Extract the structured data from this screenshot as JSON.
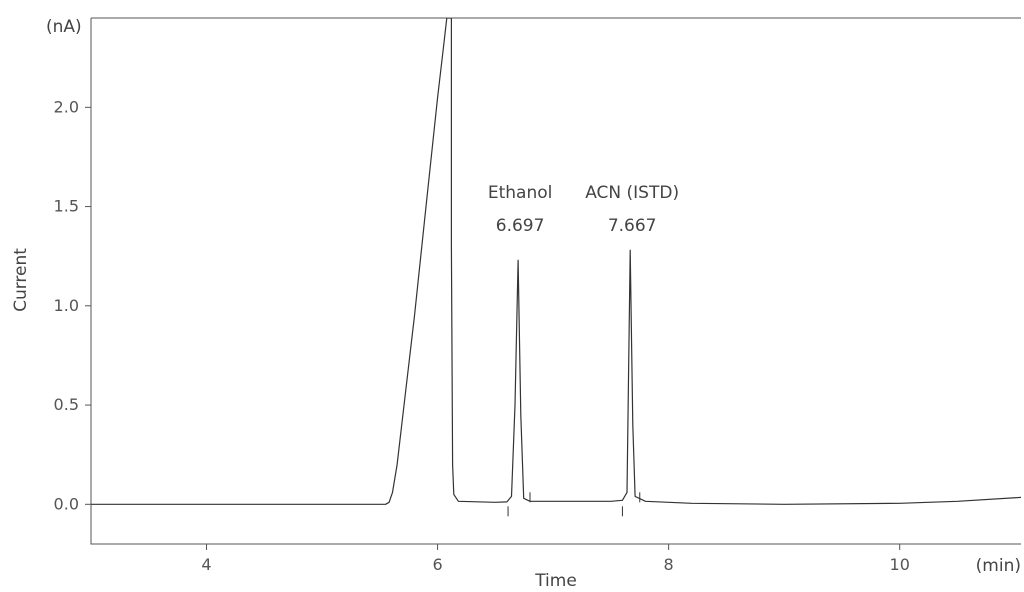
{
  "chart_data": {
    "type": "line",
    "title": "",
    "xlabel": "Time",
    "x_unit": "(min)",
    "ylabel": "Current",
    "y_unit": "(nA)",
    "xlim": [
      3.0,
      11.05
    ],
    "ylim": [
      -0.2,
      2.45
    ],
    "x_ticks": [
      4,
      6,
      8,
      10
    ],
    "y_ticks": [
      "0.0",
      "0.5",
      "1.0",
      "1.5",
      "2.0"
    ],
    "grid": false,
    "series": [
      {
        "points": [
          [
            3.0,
            0.0
          ],
          [
            5.55,
            0.0
          ],
          [
            5.58,
            0.01
          ],
          [
            5.61,
            0.06
          ],
          [
            5.65,
            0.2
          ],
          [
            5.72,
            0.55
          ],
          [
            5.8,
            0.95
          ],
          [
            5.9,
            1.5
          ],
          [
            6.0,
            2.05
          ],
          [
            6.05,
            2.3
          ],
          [
            6.08,
            2.45
          ],
          [
            6.12,
            2.45
          ],
          [
            6.12,
            1.3
          ],
          [
            6.13,
            0.2
          ],
          [
            6.14,
            0.05
          ],
          [
            6.18,
            0.015
          ],
          [
            6.5,
            0.01
          ],
          [
            6.6,
            0.012
          ],
          [
            6.64,
            0.04
          ],
          [
            6.67,
            0.5
          ],
          [
            6.697,
            1.23
          ],
          [
            6.72,
            0.45
          ],
          [
            6.745,
            0.03
          ],
          [
            6.8,
            0.015
          ],
          [
            7.2,
            0.015
          ],
          [
            7.5,
            0.015
          ],
          [
            7.6,
            0.02
          ],
          [
            7.64,
            0.06
          ],
          [
            7.667,
            1.28
          ],
          [
            7.69,
            0.4
          ],
          [
            7.71,
            0.04
          ],
          [
            7.8,
            0.015
          ],
          [
            8.2,
            0.005
          ],
          [
            9.0,
            0.0
          ],
          [
            10.0,
            0.005
          ],
          [
            10.5,
            0.015
          ],
          [
            11.05,
            0.035
          ]
        ]
      }
    ],
    "peaks": [
      {
        "name": "Ethanol",
        "rt": "6.697",
        "x": 6.697,
        "height": 1.23,
        "ticks": [
          6.61,
          6.8
        ]
      },
      {
        "name": "ACN (ISTD)",
        "rt": "7.667",
        "x": 7.667,
        "height": 1.28,
        "ticks": [
          7.6,
          7.75
        ]
      }
    ]
  }
}
